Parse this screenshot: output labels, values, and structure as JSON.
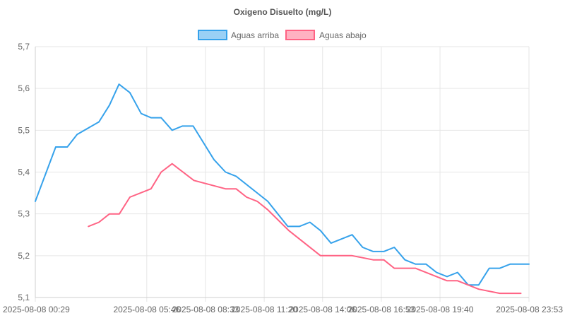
{
  "chart_data": {
    "type": "line",
    "title": "Oxigeno Disuelto (mg/L)",
    "legend_position": "top-center",
    "grid": true,
    "ylim": [
      5.1,
      5.7
    ],
    "y_ticks": [
      "5,1",
      "5,2",
      "5,3",
      "5,4",
      "5,5",
      "5,6",
      "5,7"
    ],
    "x_range": [
      "2025-08-08 00:29",
      "2025-08-08 23:53"
    ],
    "x_ticks": [
      "2025-08-08 00:29",
      "2025-08-08 05:46",
      "2025-08-08 08:33",
      "2025-08-08 11:20",
      "2025-08-08 14:06",
      "2025-08-08 16:53",
      "2025-08-08 19:40",
      "2025-08-08 23:53"
    ],
    "series": [
      {
        "name": "Aguas arriba",
        "color": "#36a2eb",
        "fill": "#9ad0f5",
        "points": [
          [
            "00:29",
            5.33
          ],
          [
            "01:27",
            5.46
          ],
          [
            "02:00",
            5.46
          ],
          [
            "02:28",
            5.49
          ],
          [
            "03:30",
            5.52
          ],
          [
            "04:00",
            5.56
          ],
          [
            "04:27",
            5.61
          ],
          [
            "04:58",
            5.59
          ],
          [
            "05:30",
            5.54
          ],
          [
            "05:58",
            5.53
          ],
          [
            "06:27",
            5.53
          ],
          [
            "06:58",
            5.5
          ],
          [
            "07:27",
            5.51
          ],
          [
            "07:58",
            5.51
          ],
          [
            "08:57",
            5.43
          ],
          [
            "09:30",
            5.4
          ],
          [
            "10:00",
            5.39
          ],
          [
            "11:30",
            5.33
          ],
          [
            "12:27",
            5.27
          ],
          [
            "13:00",
            5.27
          ],
          [
            "13:30",
            5.28
          ],
          [
            "14:00",
            5.26
          ],
          [
            "14:30",
            5.23
          ],
          [
            "15:30",
            5.25
          ],
          [
            "16:00",
            5.22
          ],
          [
            "16:30",
            5.21
          ],
          [
            "17:00",
            5.21
          ],
          [
            "17:30",
            5.22
          ],
          [
            "18:00",
            5.19
          ],
          [
            "18:30",
            5.18
          ],
          [
            "19:00",
            5.18
          ],
          [
            "19:30",
            5.16
          ],
          [
            "20:00",
            5.15
          ],
          [
            "20:30",
            5.16
          ],
          [
            "21:00",
            5.13
          ],
          [
            "21:30",
            5.13
          ],
          [
            "22:00",
            5.17
          ],
          [
            "22:30",
            5.17
          ],
          [
            "23:00",
            5.18
          ],
          [
            "23:53",
            5.18
          ]
        ]
      },
      {
        "name": "Aguas abajo",
        "color": "#ff6384",
        "fill": "#ffb1c1",
        "points": [
          [
            "03:00",
            5.27
          ],
          [
            "03:30",
            5.28
          ],
          [
            "04:00",
            5.3
          ],
          [
            "04:28",
            5.3
          ],
          [
            "04:58",
            5.34
          ],
          [
            "05:58",
            5.36
          ],
          [
            "06:27",
            5.4
          ],
          [
            "06:58",
            5.42
          ],
          [
            "08:00",
            5.38
          ],
          [
            "09:30",
            5.36
          ],
          [
            "10:00",
            5.36
          ],
          [
            "10:30",
            5.34
          ],
          [
            "11:00",
            5.33
          ],
          [
            "11:30",
            5.31
          ],
          [
            "12:30",
            5.26
          ],
          [
            "14:00",
            5.2
          ],
          [
            "15:30",
            5.2
          ],
          [
            "16:30",
            5.19
          ],
          [
            "17:00",
            5.19
          ],
          [
            "17:30",
            5.17
          ],
          [
            "18:30",
            5.17
          ],
          [
            "20:00",
            5.14
          ],
          [
            "20:30",
            5.14
          ],
          [
            "21:30",
            5.12
          ],
          [
            "22:30",
            5.11
          ],
          [
            "23:30",
            5.11
          ]
        ]
      }
    ]
  }
}
